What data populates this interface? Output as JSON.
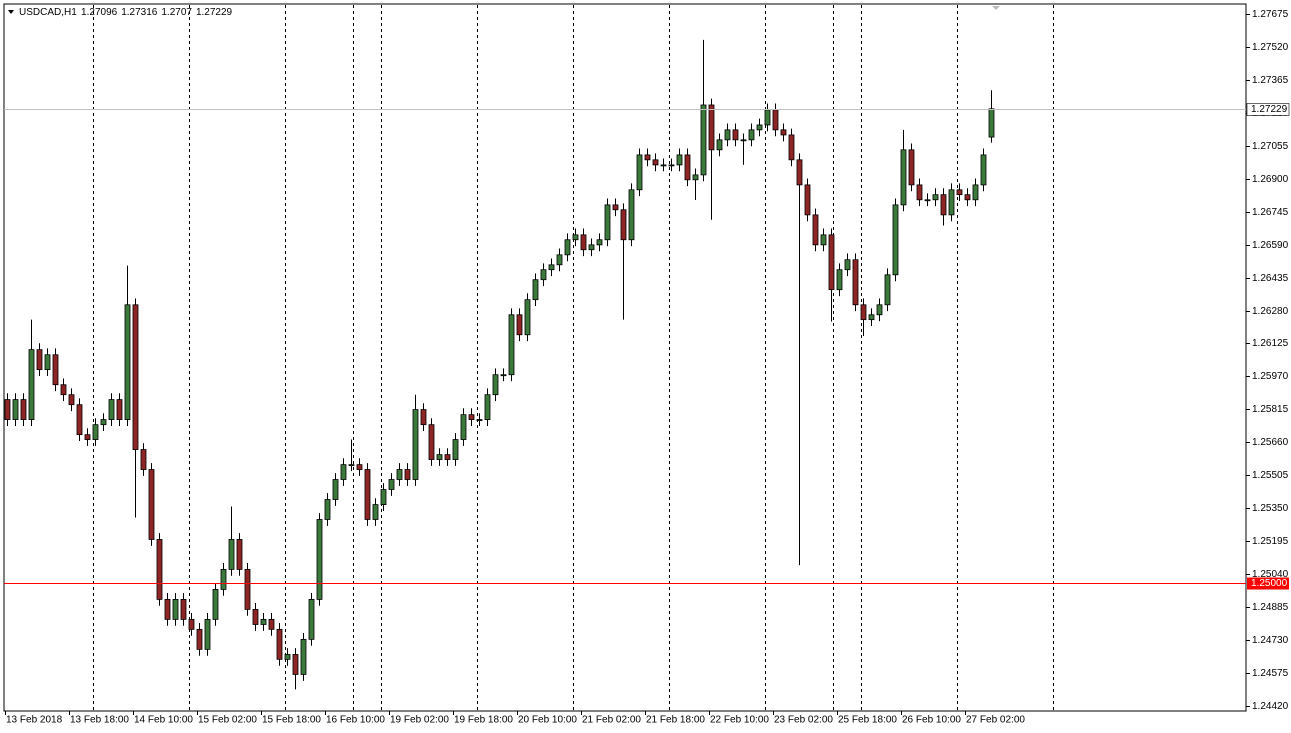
{
  "chart_data": {
    "type": "candlestick",
    "title": "USDCAD,H1",
    "categories": [
      "13 Feb 2018",
      null,
      null,
      null,
      null,
      null,
      null,
      null,
      "13 Feb 18:00",
      null,
      null,
      null,
      null,
      null,
      null,
      null,
      "14 Feb 10:00",
      null,
      null,
      null,
      null,
      null,
      null,
      null,
      "15 Feb 02:00",
      null,
      null,
      null,
      null,
      null,
      null,
      null,
      "15 Feb 18:00",
      null,
      null,
      null,
      null,
      null,
      null,
      null,
      "16 Feb 10:00",
      null,
      null,
      null,
      null,
      null,
      null,
      null,
      "19 Feb 02:00",
      null,
      null,
      null,
      null,
      null,
      null,
      null,
      "19 Feb 18:00",
      null,
      null,
      null,
      null,
      null,
      null,
      null,
      "20 Feb 10:00",
      null,
      null,
      null,
      null,
      null,
      null,
      null,
      "21 Feb 02:00",
      null,
      null,
      null,
      null,
      null,
      null,
      null,
      "21 Feb 18:00",
      null,
      null,
      null,
      null,
      null,
      null,
      null,
      "22 Feb 10:00",
      null,
      null,
      null,
      null,
      null,
      null,
      null,
      "23 Feb 02:00",
      null,
      null,
      null,
      null,
      null,
      null,
      null,
      "25 Feb 18:00",
      null,
      null,
      null,
      null,
      null,
      null,
      null,
      "26 Feb 10:00",
      null,
      null,
      null,
      null,
      null,
      null,
      null,
      "27 Feb 02:00",
      null,
      null,
      null
    ],
    "open": [
      1.25861,
      1.25767,
      1.25861,
      1.25767,
      1.26096,
      1.26002,
      1.26072,
      1.25931,
      1.25884,
      1.25837,
      1.25696,
      1.25673,
      1.25743,
      1.25767,
      1.25861,
      1.25767,
      1.26307,
      1.25626,
      1.25532,
      1.25203,
      1.24921,
      1.24827,
      1.24921,
      1.24827,
      1.2478,
      1.24686,
      1.24827,
      1.24968,
      1.25062,
      1.25203,
      1.25062,
      1.24874,
      1.24803,
      1.24827,
      1.2478,
      1.24639,
      1.24662,
      1.24568,
      1.24733,
      1.24921,
      1.25297,
      1.25391,
      1.25485,
      1.25555,
      1.25555,
      1.25532,
      1.25297,
      1.25367,
      1.25438,
      1.25485,
      1.25532,
      1.25485,
      1.25814,
      1.25743,
      1.25579,
      1.25602,
      1.25579,
      1.25673,
      1.2579,
      1.25767,
      1.25767,
      1.25884,
      1.25978,
      1.25978,
      1.2626,
      1.26166,
      1.26331,
      1.26425,
      1.26472,
      1.26495,
      1.26542,
      1.26613,
      1.26636,
      1.26566,
      1.26589,
      1.26613,
      1.26777,
      1.26754,
      1.26613,
      1.26848,
      1.27012,
      1.26989,
      1.26965,
      1.26965,
      1.26965,
      1.27012,
      1.26895,
      1.26918,
      1.27247,
      1.27036,
      1.27083,
      1.2713,
      1.27083,
      1.27083,
      1.2713,
      1.27153,
      1.27224,
      1.2713,
      1.27106,
      1.26989,
      1.26871,
      1.2673,
      1.26589,
      1.26636,
      1.26378,
      1.26472,
      1.26519,
      1.26307,
      1.26237,
      1.2626,
      1.26307,
      1.26448,
      1.26777,
      1.27036,
      1.26871,
      1.26801,
      1.26801,
      1.26825,
      1.2673,
      1.26848,
      1.26825,
      1.26801,
      1.26871,
      1.27096
    ],
    "high": [
      1.25891,
      1.25891,
      1.25891,
      1.26237,
      1.26126,
      1.26102,
      1.26102,
      1.25961,
      1.25914,
      1.25867,
      1.25726,
      1.25773,
      1.25797,
      1.25891,
      1.25891,
      1.26491,
      1.26337,
      1.25656,
      1.25562,
      1.25233,
      1.24951,
      1.24951,
      1.24951,
      1.24857,
      1.2481,
      1.24857,
      1.24998,
      1.25092,
      1.25358,
      1.25233,
      1.25092,
      1.24904,
      1.24857,
      1.24857,
      1.2481,
      1.24692,
      1.24692,
      1.24763,
      1.24951,
      1.25327,
      1.25421,
      1.25515,
      1.25585,
      1.25673,
      1.25585,
      1.25562,
      1.25397,
      1.25468,
      1.25515,
      1.25562,
      1.25562,
      1.25884,
      1.25844,
      1.25773,
      1.25632,
      1.25632,
      1.25703,
      1.2582,
      1.2582,
      1.25797,
      1.25914,
      1.26008,
      1.26008,
      1.2629,
      1.2629,
      1.26361,
      1.26455,
      1.26502,
      1.26525,
      1.26572,
      1.26643,
      1.26666,
      1.26666,
      1.26619,
      1.26643,
      1.26807,
      1.26807,
      1.26784,
      1.26878,
      1.27042,
      1.27042,
      1.27019,
      1.26995,
      1.26995,
      1.27042,
      1.27042,
      1.26948,
      1.27553,
      1.27277,
      1.27113,
      1.2716,
      1.2716,
      1.27113,
      1.2716,
      1.27183,
      1.27254,
      1.27254,
      1.2716,
      1.27136,
      1.27019,
      1.26901,
      1.2676,
      1.26666,
      1.26666,
      1.26502,
      1.26549,
      1.26549,
      1.26337,
      1.2629,
      1.26337,
      1.26478,
      1.26807,
      1.2713,
      1.27066,
      1.26901,
      1.26831,
      1.26855,
      1.26855,
      1.26878,
      1.26878,
      1.26855,
      1.26901,
      1.27042,
      1.27316
    ],
    "low": [
      1.25737,
      1.25737,
      1.25737,
      1.25737,
      1.25972,
      1.25972,
      1.25901,
      1.25854,
      1.25807,
      1.25666,
      1.25643,
      1.25643,
      1.25713,
      1.25737,
      1.25737,
      1.25737,
      1.25306,
      1.25502,
      1.25173,
      1.24891,
      1.24797,
      1.24797,
      1.24797,
      1.2475,
      1.24656,
      1.24656,
      1.24797,
      1.24938,
      1.25032,
      1.25032,
      1.24844,
      1.24773,
      1.24773,
      1.2475,
      1.24609,
      1.24609,
      1.24498,
      1.24538,
      1.24703,
      1.24891,
      1.25267,
      1.25361,
      1.25455,
      1.25525,
      1.25502,
      1.25267,
      1.25267,
      1.25337,
      1.25408,
      1.25455,
      1.25455,
      1.25455,
      1.25713,
      1.25549,
      1.25549,
      1.25549,
      1.25549,
      1.25643,
      1.25737,
      1.25737,
      1.25737,
      1.25854,
      1.25948,
      1.25948,
      1.26136,
      1.26136,
      1.26301,
      1.26395,
      1.26442,
      1.26465,
      1.26512,
      1.26583,
      1.26536,
      1.26536,
      1.26559,
      1.26583,
      1.26724,
      1.26237,
      1.26583,
      1.26818,
      1.26959,
      1.26935,
      1.26935,
      1.26935,
      1.26935,
      1.26865,
      1.268,
      1.26888,
      1.26707,
      1.27006,
      1.27053,
      1.27053,
      1.26965,
      1.27053,
      1.271,
      1.27123,
      1.271,
      1.27076,
      1.26959,
      1.25082,
      1.267,
      1.26559,
      1.26559,
      1.26228,
      1.26348,
      1.26442,
      1.26277,
      1.2616,
      1.26207,
      1.2623,
      1.26277,
      1.26418,
      1.26747,
      1.26841,
      1.26771,
      1.26771,
      1.26771,
      1.2668,
      1.267,
      1.26795,
      1.26771,
      1.26771,
      1.26841,
      1.2707
    ],
    "close": [
      1.25767,
      1.25861,
      1.25767,
      1.26096,
      1.26002,
      1.26072,
      1.25931,
      1.25884,
      1.25837,
      1.25696,
      1.25673,
      1.25743,
      1.25767,
      1.25861,
      1.25767,
      1.26307,
      1.25626,
      1.25532,
      1.25203,
      1.24921,
      1.24827,
      1.24921,
      1.24827,
      1.2478,
      1.24686,
      1.24827,
      1.24968,
      1.25062,
      1.25203,
      1.25062,
      1.24874,
      1.24803,
      1.24827,
      1.2478,
      1.24639,
      1.24662,
      1.24568,
      1.24733,
      1.24921,
      1.25297,
      1.25391,
      1.25485,
      1.25555,
      1.25555,
      1.25532,
      1.25297,
      1.25367,
      1.25438,
      1.25485,
      1.25532,
      1.25485,
      1.25814,
      1.25743,
      1.25579,
      1.25602,
      1.25579,
      1.25673,
      1.2579,
      1.25767,
      1.25767,
      1.25884,
      1.25978,
      1.25978,
      1.2626,
      1.26166,
      1.26331,
      1.26425,
      1.26472,
      1.26495,
      1.26542,
      1.26613,
      1.26636,
      1.26566,
      1.26589,
      1.26613,
      1.26777,
      1.26754,
      1.26613,
      1.26848,
      1.27012,
      1.26989,
      1.26965,
      1.26965,
      1.26965,
      1.27012,
      1.26895,
      1.26918,
      1.27247,
      1.27036,
      1.27083,
      1.2713,
      1.27083,
      1.27083,
      1.2713,
      1.27153,
      1.27224,
      1.2713,
      1.27106,
      1.26989,
      1.26871,
      1.2673,
      1.26589,
      1.26636,
      1.26378,
      1.26472,
      1.26519,
      1.26307,
      1.26237,
      1.2626,
      1.26307,
      1.26448,
      1.26777,
      1.27036,
      1.26871,
      1.26801,
      1.26801,
      1.26825,
      1.2673,
      1.26848,
      1.26825,
      1.26801,
      1.26871,
      1.27012,
      1.27229
    ],
    "up_color": "#3c7a3c",
    "down_color": "#8e2424",
    "hline": {
      "value": 1.25,
      "label": "1.25000",
      "color": "#ff0000"
    },
    "ylim": [
      1.24396,
      1.27722
    ],
    "yticks": [
      {
        "value": 1.2442,
        "label": "1.24420"
      },
      {
        "value": 1.24575,
        "label": "1.24575"
      },
      {
        "value": 1.2473,
        "label": "1.24730"
      },
      {
        "value": 1.24885,
        "label": "1.24885"
      },
      {
        "value": 1.2504,
        "label": "1.25040"
      },
      {
        "value": 1.25195,
        "label": "1.25195"
      },
      {
        "value": 1.2535,
        "label": "1.25350"
      },
      {
        "value": 1.25505,
        "label": "1.25505"
      },
      {
        "value": 1.2566,
        "label": "1.25660"
      },
      {
        "value": 1.25815,
        "label": "1.25815"
      },
      {
        "value": 1.2597,
        "label": "1.25970"
      },
      {
        "value": 1.26125,
        "label": "1.26125"
      },
      {
        "value": 1.2628,
        "label": "1.26280"
      },
      {
        "value": 1.26435,
        "label": "1.26435"
      },
      {
        "value": 1.2659,
        "label": "1.26590"
      },
      {
        "value": 1.26745,
        "label": "1.26745"
      },
      {
        "value": 1.269,
        "label": "1.26900"
      },
      {
        "value": 1.27055,
        "label": "1.27055"
      },
      {
        "value": 1.2721,
        "label": "1.27210"
      },
      {
        "value": 1.27365,
        "label": "1.27365"
      },
      {
        "value": 1.2752,
        "label": "1.27520"
      },
      {
        "value": 1.27675,
        "label": "1.27675"
      }
    ]
  }
}
